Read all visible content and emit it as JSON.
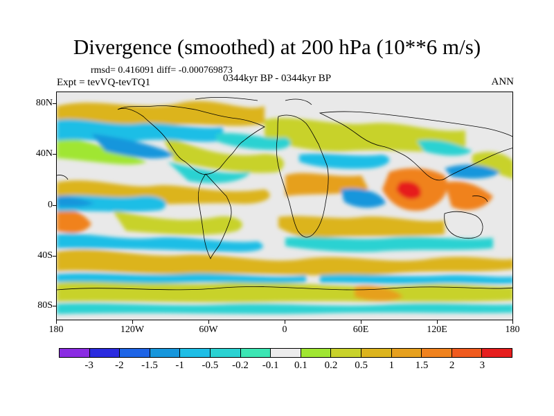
{
  "title": "Divergence (smoothed) at 200 hPa (10**6 m/s)",
  "stats": "rmsd= 0.416091 diff= -0.000769873",
  "experiment": "Expt = tevVQ-tevTQ1",
  "period": "0344kyr BP - 0344kyr BP",
  "season": "ANN",
  "lat_labels": [
    "80N",
    "40N",
    "0",
    "40S",
    "80S"
  ],
  "lon_labels": [
    "180",
    "120W",
    "60W",
    "0",
    "60E",
    "120E",
    "180"
  ],
  "colorbar": {
    "colors": [
      "#8a2be2",
      "#2a2adf",
      "#1e64e6",
      "#1696dc",
      "#1ebee6",
      "#2ad2d2",
      "#3ce6b4",
      "#ececec",
      "#a0e632",
      "#c8d22a",
      "#dcb41e",
      "#e6a01e",
      "#f0821e",
      "#f05a1e",
      "#e61e1e"
    ],
    "labels": [
      "-3",
      "-2",
      "-1.5",
      "-1",
      "-0.5",
      "-0.2",
      "-0.1",
      "0.1",
      "0.2",
      "0.5",
      "1",
      "1.5",
      "2",
      "3"
    ]
  }
}
